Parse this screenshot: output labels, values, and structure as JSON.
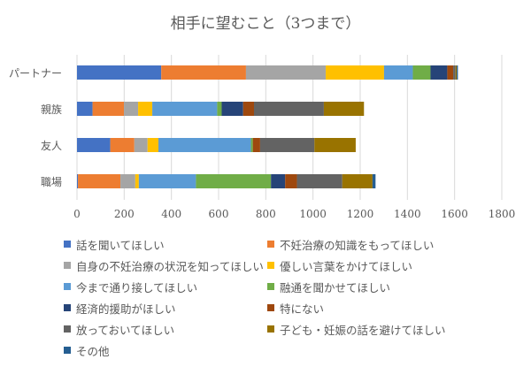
{
  "chart_data": {
    "type": "bar",
    "orientation": "horizontal-stacked",
    "title": "相手に望むこと（3つまで）",
    "categories": [
      "パートナー",
      "親族",
      "友人",
      "職場"
    ],
    "xlim": [
      0,
      1800
    ],
    "ticks": [
      "0",
      "200",
      "400",
      "600",
      "800",
      "1000",
      "1200",
      "1400",
      "1600",
      "1800"
    ],
    "grid": true,
    "legend_position": "bottom",
    "series": [
      {
        "name": "話を聞いてほしい",
        "color": "#4472C4",
        "values": [
          357,
          66,
          141,
          4
        ]
      },
      {
        "name": "不妊治療の知識をもってほしい",
        "color": "#ED7D31",
        "values": [
          359,
          133,
          102,
          180
        ]
      },
      {
        "name": "自身の不妊治療の状況を知ってほしい",
        "color": "#A5A5A5",
        "values": [
          338,
          60,
          56,
          63
        ]
      },
      {
        "name": "優しい言葉をかけてほしい",
        "color": "#FFC000",
        "values": [
          247,
          60,
          46,
          15
        ]
      },
      {
        "name": "今まで通り接してほしい",
        "color": "#5B9BD5",
        "values": [
          122,
          275,
          392,
          242
        ]
      },
      {
        "name": "融通を聞かせてほしい",
        "color": "#70AD47",
        "values": [
          75,
          19,
          8,
          318
        ]
      },
      {
        "name": "経済的援助がほしい",
        "color": "#264478",
        "values": [
          71,
          91,
          0,
          60
        ]
      },
      {
        "name": "特にない",
        "color": "#9E480E",
        "values": [
          25,
          46,
          31,
          50
        ]
      },
      {
        "name": "放っておいてほしい",
        "color": "#636363",
        "values": [
          10,
          296,
          230,
          192
        ]
      },
      {
        "name": "子ども・妊娠の話を避けてほしい",
        "color": "#997300",
        "values": [
          5,
          170,
          175,
          128
        ]
      },
      {
        "name": "その他",
        "color": "#255E91",
        "values": [
          5,
          0,
          0,
          13
        ]
      }
    ]
  }
}
